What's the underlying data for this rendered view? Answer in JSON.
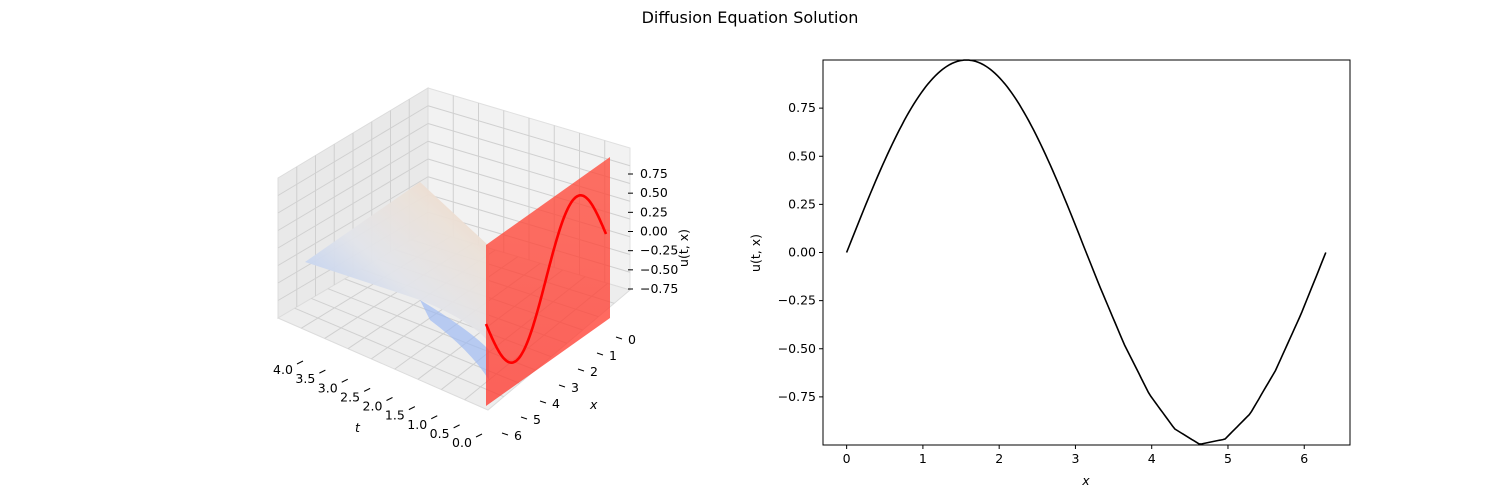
{
  "figure_title": "Diffusion Equation Solution",
  "chart_data": [
    {
      "type": "surface3d",
      "title": "",
      "xlabel": "t",
      "ylabel": "x",
      "zlabel": "u(t, x)",
      "t_ticks": [
        "0.0",
        "0.5",
        "1.0",
        "1.5",
        "2.0",
        "2.5",
        "3.0",
        "3.5",
        "4.0"
      ],
      "x_ticks": [
        "0",
        "1",
        "2",
        "3",
        "4",
        "5",
        "6"
      ],
      "z_ticks": [
        "-0.75",
        "-0.50",
        "-0.25",
        "0.00",
        "0.25",
        "0.50",
        "0.75"
      ],
      "tlim": [
        0,
        4
      ],
      "xlim": [
        0,
        6.283
      ],
      "zlim": [
        -1,
        1
      ],
      "surface": "u(t,x) = exp(-t) * sin(x)",
      "colormap": "coolwarm",
      "initial_slice": {
        "t": 0,
        "name": "u(0, x) = sin(x)",
        "color": "#ff0000"
      },
      "grid": true
    },
    {
      "type": "line",
      "title": "",
      "xlabel": "x",
      "ylabel": "u(t, x)",
      "xlim": [
        -0.31,
        6.6
      ],
      "ylim": [
        -1,
        1
      ],
      "x_ticks": [
        0,
        1,
        2,
        3,
        4,
        5,
        6
      ],
      "y_ticks": [
        -0.75,
        -0.5,
        -0.25,
        0.0,
        0.25,
        0.5,
        0.75
      ],
      "y_tick_labels": [
        "−0.75",
        "−0.50",
        "−0.25",
        "0.00",
        "0.25",
        "0.50",
        "0.75"
      ],
      "series": [
        {
          "color": "#000000",
          "x": [
            0,
            0.3307,
            0.6614,
            0.9921,
            1.3228,
            1.6535,
            1.9842,
            2.3149,
            2.6456,
            2.9762,
            3.3069,
            3.6376,
            3.9683,
            4.299,
            4.6297,
            4.9604,
            5.2911,
            5.6218,
            5.9525,
            6.2832
          ],
          "y": [
            0,
            0.3247,
            0.6142,
            0.8372,
            0.9694,
            0.9966,
            0.9158,
            0.7357,
            0.4759,
            0.1646,
            -0.1646,
            -0.4759,
            -0.7357,
            -0.9158,
            -0.9966,
            -0.9694,
            -0.8372,
            -0.6142,
            -0.3247,
            0
          ]
        }
      ],
      "grid": false
    }
  ]
}
